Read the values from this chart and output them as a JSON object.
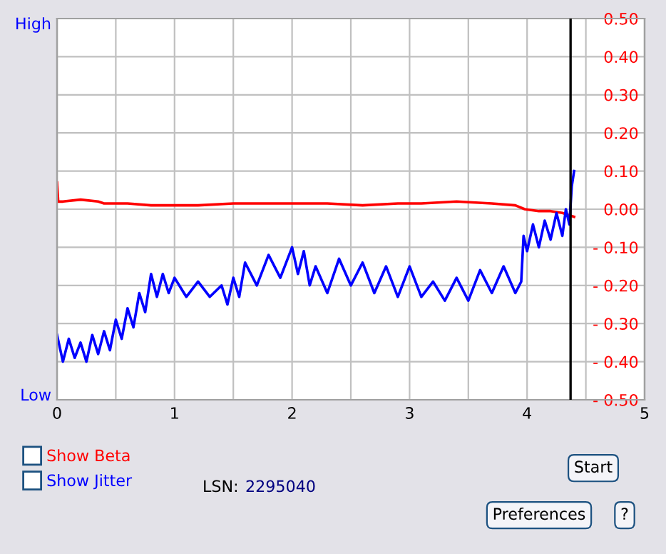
{
  "chart_data": {
    "type": "line",
    "xlim": [
      0,
      5
    ],
    "xticks": [
      0,
      1,
      2,
      3,
      4,
      5
    ],
    "y2lim": [
      -0.5,
      0.5
    ],
    "y2ticks": [
      {
        "value": -0.5,
        "label": "- 0.50"
      },
      {
        "value": -0.4,
        "label": "- 0.40"
      },
      {
        "value": -0.3,
        "label": "- 0.30"
      },
      {
        "value": -0.2,
        "label": "- 0.20"
      },
      {
        "value": -0.1,
        "label": "- 0.10"
      },
      {
        "value": 0.0,
        "label": "0.00"
      },
      {
        "value": 0.1,
        "label": "0.10"
      },
      {
        "value": 0.2,
        "label": "0.20"
      },
      {
        "value": 0.3,
        "label": "0.30"
      },
      {
        "value": 0.4,
        "label": "0.40"
      },
      {
        "value": 0.5,
        "label": "0.50"
      }
    ],
    "grid": true,
    "legend": "bottom left",
    "marker": "none",
    "line_style": "solid",
    "series": [
      {
        "name": "Show Beta",
        "color": "#ff0000",
        "axis": "y2",
        "x": [
          0,
          0.01,
          0.05,
          0.2,
          0.35,
          0.4,
          0.6,
          0.8,
          1.0,
          1.2,
          1.5,
          1.7,
          2.0,
          2.3,
          2.6,
          2.9,
          3.1,
          3.4,
          3.7,
          3.9,
          3.98,
          4.1,
          4.2,
          4.3,
          4.4
        ],
        "values": [
          0.07,
          0.02,
          0.02,
          0.025,
          0.02,
          0.015,
          0.015,
          0.01,
          0.01,
          0.01,
          0.015,
          0.015,
          0.015,
          0.015,
          0.01,
          0.015,
          0.015,
          0.02,
          0.015,
          0.01,
          0.0,
          -0.005,
          -0.005,
          -0.01,
          -0.02
        ]
      },
      {
        "name": "Show Jitter",
        "color": "#0000ff",
        "axis": "y2",
        "x": [
          0,
          0.05,
          0.1,
          0.15,
          0.2,
          0.25,
          0.3,
          0.35,
          0.4,
          0.45,
          0.5,
          0.55,
          0.6,
          0.65,
          0.7,
          0.75,
          0.8,
          0.85,
          0.9,
          0.95,
          1.0,
          1.1,
          1.2,
          1.3,
          1.4,
          1.45,
          1.5,
          1.55,
          1.6,
          1.7,
          1.8,
          1.9,
          2.0,
          2.05,
          2.1,
          2.15,
          2.2,
          2.3,
          2.4,
          2.5,
          2.6,
          2.7,
          2.8,
          2.9,
          3.0,
          3.1,
          3.2,
          3.3,
          3.4,
          3.5,
          3.6,
          3.7,
          3.8,
          3.9,
          3.95,
          3.97,
          4.0,
          4.05,
          4.1,
          4.15,
          4.2,
          4.25,
          4.3,
          4.33,
          4.36,
          4.38,
          4.4
        ],
        "values": [
          -0.33,
          -0.4,
          -0.34,
          -0.39,
          -0.35,
          -0.4,
          -0.33,
          -0.38,
          -0.32,
          -0.37,
          -0.29,
          -0.34,
          -0.26,
          -0.31,
          -0.22,
          -0.27,
          -0.17,
          -0.23,
          -0.17,
          -0.22,
          -0.18,
          -0.23,
          -0.19,
          -0.23,
          -0.2,
          -0.25,
          -0.18,
          -0.23,
          -0.14,
          -0.2,
          -0.12,
          -0.18,
          -0.1,
          -0.17,
          -0.11,
          -0.2,
          -0.15,
          -0.22,
          -0.13,
          -0.2,
          -0.14,
          -0.22,
          -0.15,
          -0.23,
          -0.15,
          -0.23,
          -0.19,
          -0.24,
          -0.18,
          -0.24,
          -0.16,
          -0.22,
          -0.15,
          -0.22,
          -0.19,
          -0.07,
          -0.11,
          -0.04,
          -0.1,
          -0.03,
          -0.08,
          -0.01,
          -0.07,
          0.0,
          -0.04,
          0.06,
          0.1
        ]
      }
    ],
    "ref_lines": [
      {
        "axis": "x",
        "value": 4.37,
        "color": "#000000"
      }
    ],
    "annotations": [
      "High",
      "Low",
      "LSN:",
      "2295040",
      "Start",
      "Preferences",
      "?"
    ]
  }
}
